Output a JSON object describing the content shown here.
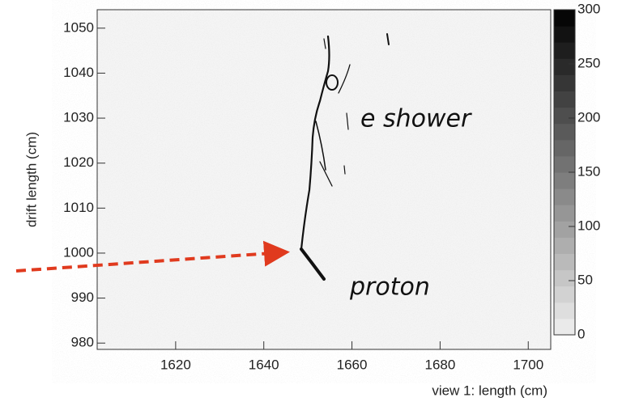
{
  "chart_data": {
    "type": "heatmap",
    "x_label": "view 1: length (cm)",
    "y_label": "drift length (cm)",
    "xlim": [
      1602.2,
      1705.1
    ],
    "xticks": [
      1620,
      1640,
      1660,
      1680,
      1700
    ],
    "ylim": [
      978.6,
      1054.1
    ],
    "yticks": [
      980,
      990,
      1000,
      1010,
      1020,
      1030,
      1040,
      1050
    ],
    "zlim": [
      0,
      300
    ],
    "zticks": [
      0,
      50,
      100,
      150,
      200,
      250,
      300
    ],
    "annotations": [
      "e shower",
      "proton"
    ]
  }
}
